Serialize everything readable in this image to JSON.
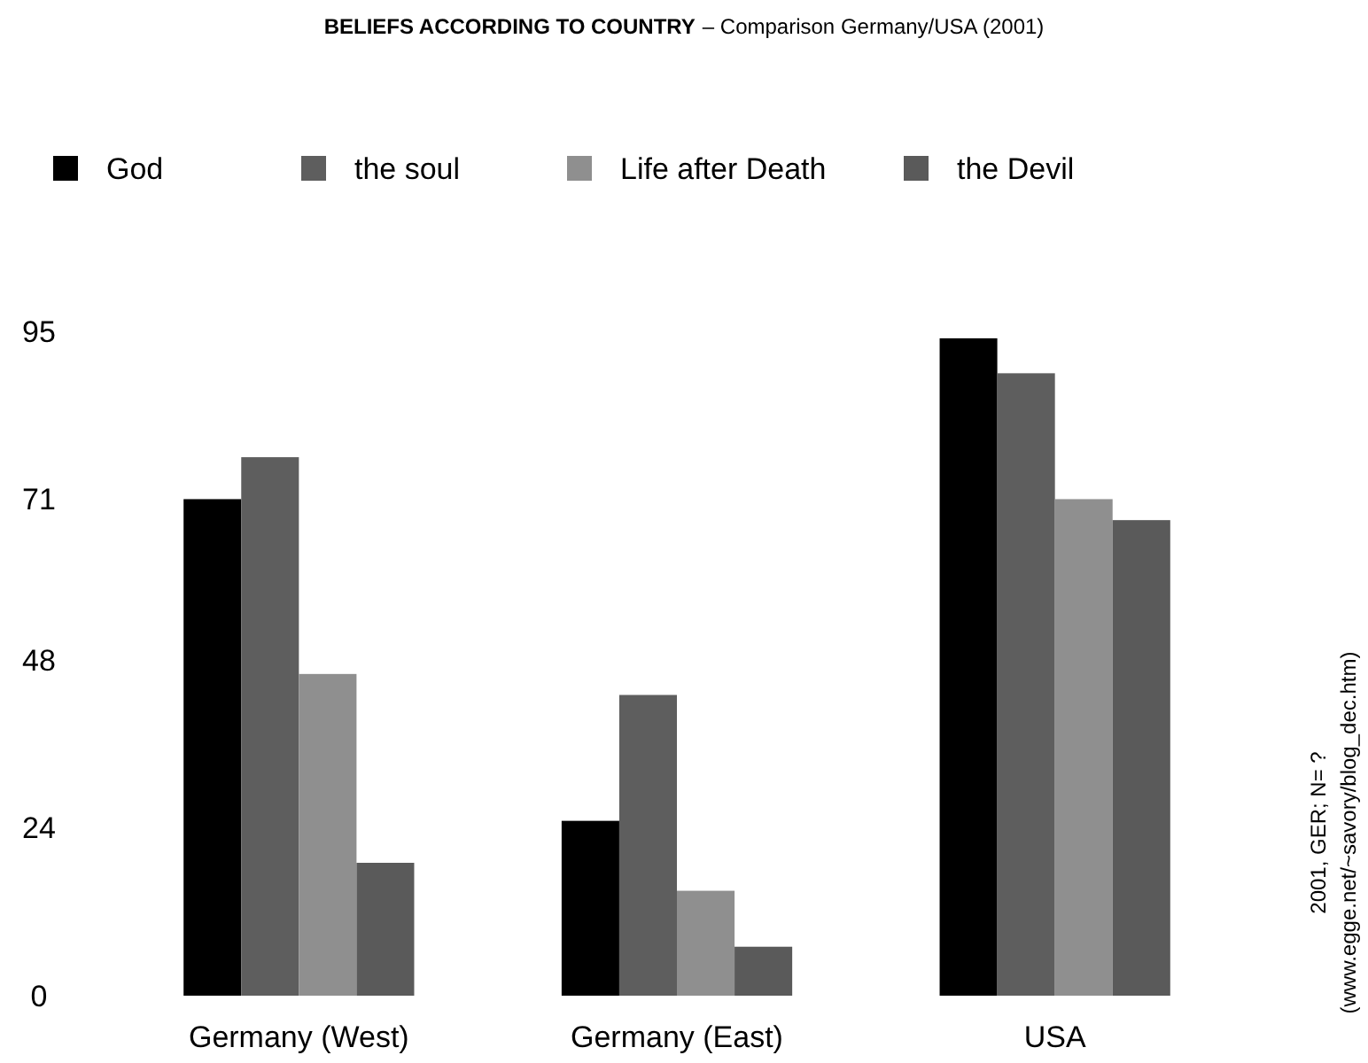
{
  "chart_data": {
    "type": "bar",
    "title": "BELIEFS ACCORDING TO COUNTRY",
    "subtitle": "– Comparison Germany/USA (2001)",
    "categories": [
      "Germany (West)",
      "Germany (East)",
      "USA"
    ],
    "series": [
      {
        "name": "God",
        "color": "#000000",
        "values": [
          71,
          25,
          94
        ]
      },
      {
        "name": "the soul",
        "color": "#5e5e5e",
        "values": [
          77,
          43,
          89
        ]
      },
      {
        "name": "Life after Death",
        "color": "#8f8f8f",
        "values": [
          46,
          15,
          71
        ]
      },
      {
        "name": "the Devil",
        "color": "#5a5a5a",
        "values": [
          19,
          7,
          68
        ]
      }
    ],
    "ylim": [
      0,
      95
    ],
    "yticks": [
      0,
      24,
      48,
      71,
      95
    ],
    "grid": false,
    "legend": "top left",
    "annotations": [
      "2001, GER; N= ?",
      "(www.egge.net/~savory/blog_dec.htm)"
    ]
  }
}
